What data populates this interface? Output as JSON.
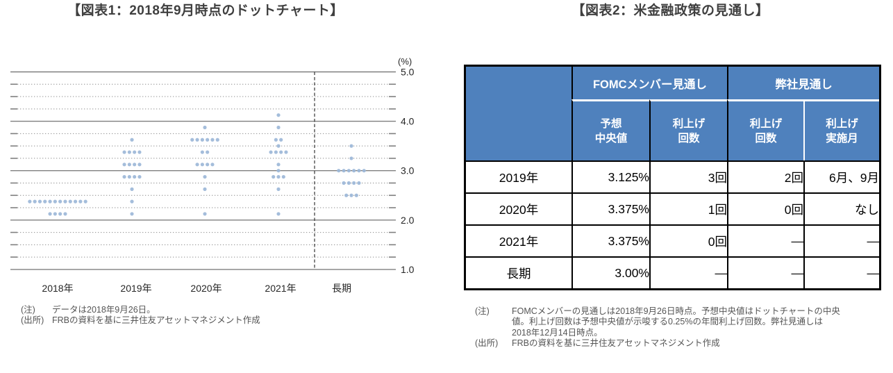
{
  "figure1": {
    "title": "【図表1：2018年9月時点のドットチャート】",
    "note_label": "(注)",
    "note": "データは2018年9月26日。",
    "source_label": "(出所)",
    "source": "FRBの資料を基に三井住友アセットマネジメント作成"
  },
  "chart_data": {
    "type": "scatter",
    "title": "【図表1：2018年9月時点のドットチャート】",
    "unit_label": "(%)",
    "ylim": [
      1.0,
      5.0
    ],
    "yticks": [
      5.0,
      4.0,
      3.0,
      2.0,
      1.0
    ],
    "minor_tick_step": 0.25,
    "grid": true,
    "legend": "none",
    "separator_after_category": "2021年",
    "categories": [
      "2018年",
      "2019年",
      "2020年",
      "2021年",
      "長期"
    ],
    "series": [
      {
        "category": "2018年",
        "dots": [
          {
            "rate": 2.375,
            "count": 12
          },
          {
            "rate": 2.125,
            "count": 4
          }
        ]
      },
      {
        "category": "2019年",
        "dots": [
          {
            "rate": 3.625,
            "count": 1
          },
          {
            "rate": 3.375,
            "count": 4
          },
          {
            "rate": 3.125,
            "count": 4
          },
          {
            "rate": 2.875,
            "count": 4
          },
          {
            "rate": 2.625,
            "count": 1
          },
          {
            "rate": 2.375,
            "count": 1
          },
          {
            "rate": 2.125,
            "count": 1
          }
        ]
      },
      {
        "category": "2020年",
        "dots": [
          {
            "rate": 3.875,
            "count": 1
          },
          {
            "rate": 3.625,
            "count": 6
          },
          {
            "rate": 3.375,
            "count": 2
          },
          {
            "rate": 3.125,
            "count": 4
          },
          {
            "rate": 2.875,
            "count": 1
          },
          {
            "rate": 2.625,
            "count": 1
          },
          {
            "rate": 2.125,
            "count": 1
          }
        ]
      },
      {
        "category": "2021年",
        "dots": [
          {
            "rate": 4.125,
            "count": 1
          },
          {
            "rate": 3.875,
            "count": 1
          },
          {
            "rate": 3.625,
            "count": 2
          },
          {
            "rate": 3.5,
            "count": 1
          },
          {
            "rate": 3.375,
            "count": 4
          },
          {
            "rate": 3.125,
            "count": 1
          },
          {
            "rate": 3.0,
            "count": 1
          },
          {
            "rate": 2.875,
            "count": 3
          },
          {
            "rate": 2.625,
            "count": 1
          },
          {
            "rate": 2.125,
            "count": 1
          }
        ]
      },
      {
        "category": "長期",
        "dots": [
          {
            "rate": 3.5,
            "count": 1
          },
          {
            "rate": 3.25,
            "count": 1
          },
          {
            "rate": 3.0,
            "count": 6
          },
          {
            "rate": 2.75,
            "count": 4
          },
          {
            "rate": 2.5,
            "count": 3
          }
        ]
      }
    ],
    "medians": {
      "2019年": "3.125%",
      "2020年": "3.375%",
      "2021年": "3.375%",
      "長期": "3.00%"
    },
    "dot_color": "#9cb7d8"
  },
  "figure2": {
    "title": "【図表2：米金融政策の見通し】",
    "table": {
      "group_headers": [
        "FOMCメンバー見通し",
        "弊社見通し"
      ],
      "sub_headers": [
        "予想\n中央値",
        "利上げ\n回数",
        "利上げ\n回数",
        "利上げ\n実施月"
      ],
      "rows": [
        {
          "label": "2019年",
          "values": [
            "3.125%",
            "3回",
            "2回",
            "6月、9月"
          ]
        },
        {
          "label": "2020年",
          "values": [
            "3.375%",
            "1回",
            "0回",
            "なし"
          ]
        },
        {
          "label": "2021年",
          "values": [
            "3.375%",
            "0回",
            "―",
            "―"
          ]
        },
        {
          "label": "長期",
          "values": [
            "3.00%",
            "―",
            "―",
            "―"
          ]
        }
      ],
      "header_bg": "#4f81bd"
    },
    "note_label": "(注)",
    "note": "FOMCメンバーの見通しは2018年9月26日時点。予想中央値はドットチャートの中央\n値。利上げ回数は予想中央値が示唆する0.25%の年間利上げ回数。弊社見通しは\n2018年12月14日時点。",
    "source_label": "(出所)",
    "source": "FRBの資料を基に三井住友アセットマネジメント作成"
  }
}
